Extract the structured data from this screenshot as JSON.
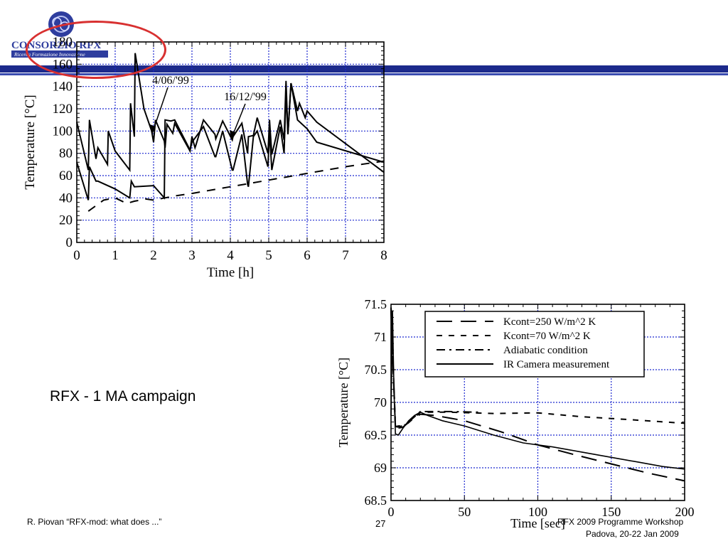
{
  "logo": {
    "brand": "CONSORZIO RFX",
    "tagline": "Ricerca Formazione Innovazione"
  },
  "campaign_label": "RFX - 1 MA campaign",
  "footer": {
    "author": "R. Piovan “RFX-mod: what does ...”",
    "page": "27",
    "workshop": "RFX 2009 Programme Workshop",
    "venue": "Padova,  20-22 Jan 2009"
  },
  "colors": {
    "header_band": "#1c2a8c",
    "highlight_circle": "#d83030",
    "grid": "#1f2ad0"
  },
  "chart_data": [
    {
      "type": "line",
      "xlabel": "Time [h]",
      "ylabel": "Temperature [°C]",
      "xlim": [
        0,
        8
      ],
      "ylim": [
        0,
        180
      ],
      "xticks": [
        0,
        1,
        2,
        3,
        4,
        5,
        6,
        7,
        8
      ],
      "yticks": [
        0,
        20,
        40,
        60,
        80,
        100,
        120,
        140,
        160,
        180
      ],
      "grid": true,
      "annotations": [
        "4/06/'99",
        "16/12/'99"
      ],
      "series": [
        {
          "style": "solid",
          "points": [
            [
              0,
              108
            ],
            [
              0.3,
              65
            ],
            [
              0.33,
              110
            ],
            [
              0.5,
              75
            ],
            [
              0.55,
              85
            ],
            [
              0.8,
              70
            ],
            [
              0.82,
              100
            ],
            [
              1.0,
              82
            ],
            [
              1.38,
              65
            ],
            [
              1.4,
              125
            ],
            [
              1.5,
              95
            ],
            [
              1.52,
              170
            ],
            [
              1.75,
              120
            ],
            [
              1.8,
              115
            ],
            [
              1.95,
              100
            ],
            [
              2.0,
              90
            ],
            [
              2.05,
              110
            ],
            [
              2.28,
              91
            ],
            [
              2.3,
              85
            ],
            [
              2.35,
              106
            ],
            [
              2.5,
              98
            ],
            [
              2.55,
              107
            ],
            [
              2.95,
              82
            ],
            [
              3.0,
              95
            ],
            [
              3.08,
              85
            ],
            [
              3.1,
              87
            ],
            [
              3.3,
              110
            ],
            [
              3.6,
              97
            ],
            [
              3.62,
              93
            ],
            [
              3.8,
              109
            ],
            [
              4.05,
              92
            ],
            [
              4.07,
              95
            ],
            [
              4.3,
              107
            ],
            [
              4.45,
              80
            ],
            [
              4.47,
              95
            ],
            [
              4.6,
              96
            ],
            [
              4.7,
              112
            ],
            [
              4.98,
              80
            ],
            [
              5.02,
              110
            ],
            [
              5.08,
              79
            ],
            [
              5.3,
              110
            ],
            [
              5.4,
              92
            ],
            [
              5.45,
              145
            ],
            [
              5.5,
              97
            ],
            [
              5.58,
              143
            ],
            [
              5.75,
              118
            ],
            [
              5.8,
              125
            ],
            [
              5.95,
              112
            ],
            [
              6.0,
              118
            ],
            [
              6.25,
              108
            ],
            [
              8.0,
              63
            ]
          ]
        },
        {
          "style": "solid",
          "points": [
            [
              0,
              72
            ],
            [
              0.3,
              38
            ],
            [
              0.33,
              68
            ],
            [
              0.5,
              55
            ],
            [
              0.55,
              55
            ],
            [
              1.0,
              48
            ],
            [
              1.38,
              40
            ],
            [
              1.42,
              55
            ],
            [
              1.5,
              50
            ],
            [
              2.0,
              51
            ],
            [
              2.28,
              40
            ],
            [
              2.3,
              110
            ],
            [
              2.45,
              109
            ],
            [
              2.55,
              110
            ],
            [
              2.95,
              83
            ],
            [
              3.0,
              90
            ],
            [
              3.3,
              104
            ],
            [
              3.6,
              77
            ],
            [
              3.62,
              77
            ],
            [
              3.8,
              100
            ],
            [
              4.05,
              65
            ],
            [
              4.07,
              65
            ],
            [
              4.3,
              97
            ],
            [
              4.45,
              52
            ],
            [
              4.47,
              50
            ],
            [
              4.6,
              95
            ],
            [
              4.7,
              100
            ],
            [
              4.98,
              68
            ],
            [
              5.02,
              100
            ],
            [
              5.08,
              65
            ],
            [
              5.3,
              104
            ],
            [
              5.4,
              80
            ],
            [
              5.45,
              135
            ],
            [
              5.5,
              97
            ],
            [
              5.58,
              143
            ],
            [
              5.75,
              110
            ],
            [
              6.0,
              102
            ],
            [
              6.25,
              90
            ],
            [
              8.0,
              72
            ]
          ]
        },
        {
          "style": "dashed",
          "points": [
            [
              0.3,
              28
            ],
            [
              0.5,
              33
            ],
            [
              0.7,
              38
            ],
            [
              1.0,
              40
            ],
            [
              1.3,
              35
            ],
            [
              1.5,
              37
            ],
            [
              1.8,
              39
            ],
            [
              2.0,
              38
            ],
            [
              2.3,
              40
            ],
            [
              2.6,
              42
            ],
            [
              3.0,
              44
            ],
            [
              3.5,
              47
            ],
            [
              4.0,
              50
            ],
            [
              4.5,
              53
            ],
            [
              5.0,
              56
            ],
            [
              5.5,
              59
            ],
            [
              6.0,
              62
            ],
            [
              7.0,
              68
            ],
            [
              8.0,
              73
            ]
          ]
        }
      ]
    },
    {
      "type": "line",
      "xlabel": "Time [sec]",
      "ylabel": "Temperature [°C]",
      "xlim": [
        0,
        200
      ],
      "ylim": [
        68.5,
        71.5
      ],
      "xticks": [
        0,
        50,
        100,
        150,
        200
      ],
      "yticks": [
        68.5,
        69,
        69.5,
        70,
        70.5,
        71,
        71.5
      ],
      "grid": true,
      "legend_position": "top-right",
      "series": [
        {
          "name": "Kcont=250 W/m^2 K",
          "style": "dash-long",
          "points": [
            [
              0,
              71.4
            ],
            [
              3,
              69.6
            ],
            [
              8,
              69.62
            ],
            [
              15,
              69.75
            ],
            [
              20,
              69.82
            ],
            [
              30,
              69.8
            ],
            [
              50,
              69.72
            ],
            [
              75,
              69.55
            ],
            [
              100,
              69.35
            ],
            [
              125,
              69.2
            ],
            [
              150,
              69.06
            ],
            [
              175,
              68.92
            ],
            [
              200,
              68.8
            ]
          ]
        },
        {
          "name": "Kcont=70 W/m^2 K",
          "style": "dash-short",
          "points": [
            [
              0,
              71.45
            ],
            [
              3,
              69.62
            ],
            [
              10,
              69.65
            ],
            [
              20,
              69.85
            ],
            [
              40,
              69.85
            ],
            [
              70,
              69.83
            ],
            [
              100,
              69.84
            ],
            [
              130,
              69.78
            ],
            [
              160,
              69.74
            ],
            [
              200,
              69.68
            ]
          ]
        },
        {
          "name": "Adiabatic condition",
          "style": "dash-dot",
          "points": [
            [
              0,
              71.45
            ],
            [
              3,
              69.63
            ],
            [
              10,
              69.66
            ],
            [
              20,
              69.86
            ],
            [
              40,
              69.86
            ],
            [
              60,
              69.85
            ]
          ]
        },
        {
          "name": "IR Camera measurement",
          "style": "solid",
          "points": [
            [
              0,
              69.8
            ],
            [
              1,
              71.4
            ],
            [
              2,
              70.2
            ],
            [
              3,
              69.52
            ],
            [
              5,
              69.5
            ],
            [
              8,
              69.6
            ],
            [
              12,
              69.72
            ],
            [
              16,
              69.8
            ],
            [
              20,
              69.85
            ],
            [
              25,
              69.8
            ],
            [
              35,
              69.72
            ],
            [
              50,
              69.64
            ],
            [
              70,
              69.5
            ],
            [
              90,
              69.38
            ],
            [
              110,
              69.32
            ],
            [
              130,
              69.24
            ],
            [
              150,
              69.16
            ],
            [
              170,
              69.08
            ],
            [
              185,
              69.02
            ],
            [
              200,
              68.98
            ]
          ]
        }
      ]
    }
  ]
}
